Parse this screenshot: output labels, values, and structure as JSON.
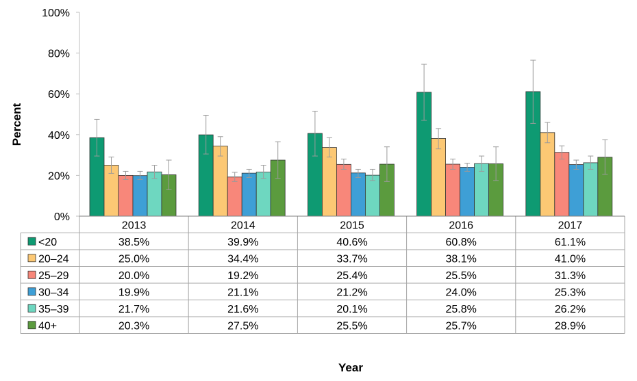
{
  "chart_data": {
    "type": "bar",
    "title": "",
    "xlabel": "Year",
    "ylabel": "Percent",
    "ylim": [
      0,
      100
    ],
    "yticks": [
      "0%",
      "20%",
      "40%",
      "60%",
      "80%",
      "100%"
    ],
    "grid": false,
    "legend": "data-table-left",
    "categories": [
      "2013",
      "2014",
      "2015",
      "2016",
      "2017"
    ],
    "series": [
      {
        "name": "<20",
        "color": "#0e9a72",
        "values": [
          38.5,
          39.9,
          40.6,
          60.8,
          61.1
        ],
        "error_upper": [
          47.5,
          49.5,
          51.5,
          74.5,
          76.5
        ],
        "error_lower": [
          29.5,
          30.5,
          29.5,
          47.0,
          45.5
        ],
        "labels": [
          "38.5%",
          "39.9%",
          "40.6%",
          "60.8%",
          "61.1%"
        ]
      },
      {
        "name": "20–24",
        "color": "#fcc874",
        "values": [
          25.0,
          34.4,
          33.7,
          38.1,
          41.0
        ],
        "error_upper": [
          29.0,
          39.0,
          38.5,
          43.0,
          46.0
        ],
        "error_lower": [
          21.0,
          29.5,
          29.0,
          33.0,
          36.0
        ],
        "labels": [
          "25.0%",
          "34.4%",
          "33.7%",
          "38.1%",
          "41.0%"
        ]
      },
      {
        "name": "25–29",
        "color": "#f8877a",
        "values": [
          20.0,
          19.2,
          25.4,
          25.5,
          31.3
        ],
        "error_upper": [
          22.0,
          21.5,
          28.0,
          28.0,
          34.5
        ],
        "error_lower": [
          18.0,
          17.0,
          23.0,
          23.0,
          28.0
        ],
        "labels": [
          "20.0%",
          "19.2%",
          "25.4%",
          "25.5%",
          "31.3%"
        ]
      },
      {
        "name": "30–34",
        "color": "#3e9fd6",
        "values": [
          19.9,
          21.1,
          21.2,
          24.0,
          25.3
        ],
        "error_upper": [
          22.0,
          23.0,
          23.0,
          26.0,
          27.5
        ],
        "error_lower": [
          18.0,
          19.0,
          19.0,
          22.0,
          23.0
        ],
        "labels": [
          "19.9%",
          "21.1%",
          "21.2%",
          "24.0%",
          "25.3%"
        ]
      },
      {
        "name": "35–39",
        "color": "#6ed7c0",
        "values": [
          21.7,
          21.6,
          20.1,
          25.8,
          26.2
        ],
        "error_upper": [
          25.0,
          25.0,
          23.0,
          29.5,
          29.5
        ],
        "error_lower": [
          18.5,
          18.5,
          17.5,
          22.0,
          23.0
        ],
        "labels": [
          "21.7%",
          "21.6%",
          "20.1%",
          "25.8%",
          "26.2%"
        ]
      },
      {
        "name": "40+",
        "color": "#5b9b3e",
        "values": [
          20.3,
          27.5,
          25.5,
          25.7,
          28.9
        ],
        "error_upper": [
          27.5,
          36.5,
          34.0,
          34.0,
          37.5
        ],
        "error_lower": [
          13.0,
          18.5,
          17.0,
          17.5,
          20.5
        ],
        "labels": [
          "20.3%",
          "27.5%",
          "25.5%",
          "25.7%",
          "28.9%"
        ]
      }
    ]
  }
}
